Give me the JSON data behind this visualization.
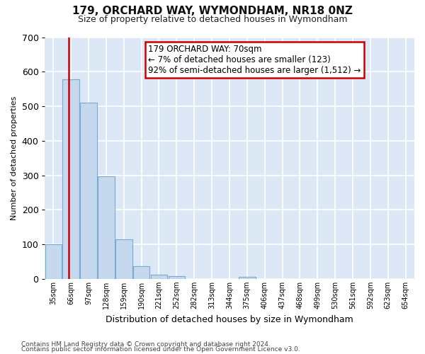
{
  "title": "179, ORCHARD WAY, WYMONDHAM, NR18 0NZ",
  "subtitle": "Size of property relative to detached houses in Wymondham",
  "xlabel": "Distribution of detached houses by size in Wymondham",
  "ylabel": "Number of detached properties",
  "footnote1": "Contains HM Land Registry data © Crown copyright and database right 2024.",
  "footnote2": "Contains public sector information licensed under the Open Government Licence v3.0.",
  "annotation_line1": "179 ORCHARD WAY: 70sqm",
  "annotation_line2": "← 7% of detached houses are smaller (123)",
  "annotation_line3": "92% of semi-detached houses are larger (1,512) →",
  "bar_color": "#c5d8ee",
  "bar_edge_color": "#7aaad0",
  "vline_color": "#cc0000",
  "box_edge_color": "#cc0000",
  "fig_bg_color": "#ffffff",
  "plot_bg_color": "#dce8f5",
  "grid_color": "#ffffff",
  "categories": [
    "35sqm",
    "66sqm",
    "97sqm",
    "128sqm",
    "159sqm",
    "190sqm",
    "221sqm",
    "252sqm",
    "282sqm",
    "313sqm",
    "344sqm",
    "375sqm",
    "406sqm",
    "437sqm",
    "468sqm",
    "499sqm",
    "530sqm",
    "561sqm",
    "592sqm",
    "623sqm",
    "654sqm"
  ],
  "values": [
    100,
    578,
    510,
    298,
    115,
    37,
    13,
    7,
    0,
    0,
    0,
    6,
    0,
    0,
    0,
    0,
    0,
    0,
    0,
    0,
    0
  ],
  "ylim": [
    0,
    700
  ],
  "yticks": [
    0,
    100,
    200,
    300,
    400,
    500,
    600,
    700
  ],
  "vline_bar_index": 0.88,
  "title_fontsize": 11,
  "subtitle_fontsize": 9,
  "ylabel_fontsize": 8,
  "xlabel_fontsize": 9,
  "tick_fontsize": 7,
  "footnote_fontsize": 6.5
}
